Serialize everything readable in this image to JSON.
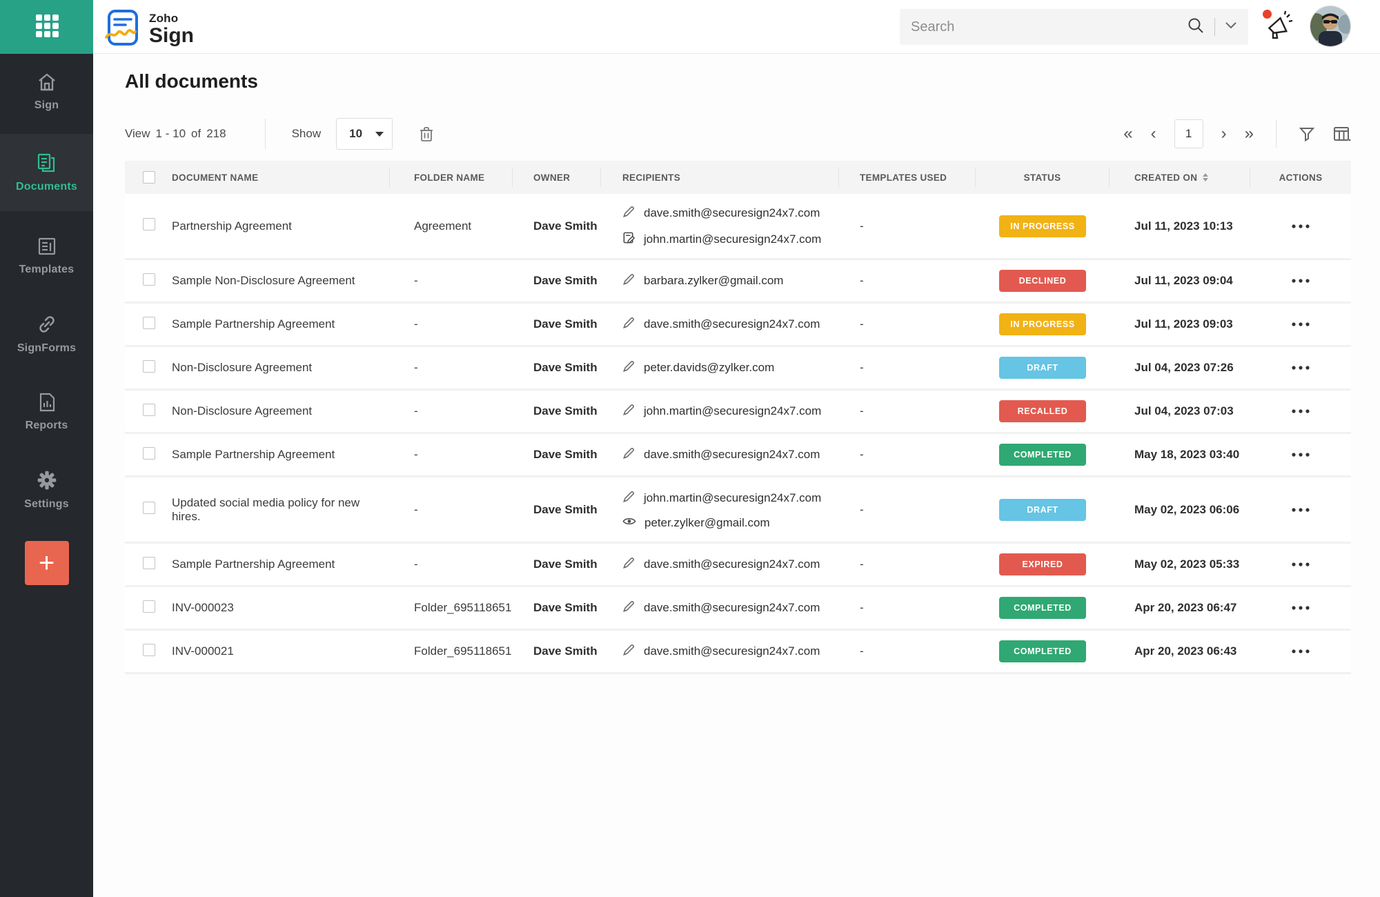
{
  "topbar": {
    "search_placeholder": "Search",
    "brand": {
      "name_top": "Zoho",
      "name_bottom": "Sign"
    }
  },
  "sidebar": {
    "items": [
      {
        "label": "Sign",
        "icon": "home-icon",
        "active": false
      },
      {
        "label": "Documents",
        "icon": "documents-icon",
        "active": true
      },
      {
        "label": "Templates",
        "icon": "templates-icon",
        "active": false
      },
      {
        "label": "SignForms",
        "icon": "link-icon",
        "active": false
      },
      {
        "label": "Reports",
        "icon": "reports-icon",
        "active": false
      },
      {
        "label": "Settings",
        "icon": "gear-icon",
        "active": false
      }
    ],
    "add_label": "+"
  },
  "page": {
    "title": "All documents"
  },
  "toolbar": {
    "view_label": "View",
    "range": "1 - 10",
    "of_label": "of",
    "total": "218",
    "show_label": "Show",
    "page_size": "10"
  },
  "pagination": {
    "first": "«",
    "prev": "‹",
    "current_page": "1",
    "next": "›",
    "last": "»"
  },
  "status_colors": {
    "IN PROGRESS": "#F1B215",
    "DECLINED": "#E25A4F",
    "DRAFT": "#66C4E4",
    "RECALLED": "#E25A4F",
    "COMPLETED": "#30A873",
    "EXPIRED": "#E25A4F"
  },
  "table": {
    "columns": [
      "DOCUMENT NAME",
      "FOLDER NAME",
      "OWNER",
      "RECIPIENTS",
      "TEMPLATES USED",
      "STATUS",
      "CREATED ON",
      "ACTIONS"
    ],
    "rows": [
      {
        "name": "Partnership Agreement",
        "folder": "Agreement",
        "owner": "Dave Smith",
        "recipients": [
          {
            "icon": "signer-pen-icon",
            "email": "dave.smith@securesign24x7.com"
          },
          {
            "icon": "in-person-sign-icon",
            "email": "john.martin@securesign24x7.com"
          }
        ],
        "templates_used": "-",
        "status": "IN PROGRESS",
        "created_on": "Jul 11, 2023 10:13"
      },
      {
        "name": "Sample Non-Disclosure Agreement",
        "folder": "-",
        "owner": "Dave Smith",
        "recipients": [
          {
            "icon": "signer-pen-icon",
            "email": "barbara.zylker@gmail.com"
          }
        ],
        "templates_used": "-",
        "status": "DECLINED",
        "created_on": "Jul 11, 2023 09:04"
      },
      {
        "name": "Sample Partnership Agreement",
        "folder": "-",
        "owner": "Dave Smith",
        "recipients": [
          {
            "icon": "signer-pen-icon",
            "email": "dave.smith@securesign24x7.com"
          }
        ],
        "templates_used": "-",
        "status": "IN PROGRESS",
        "created_on": "Jul 11, 2023 09:03"
      },
      {
        "name": "Non-Disclosure Agreement",
        "folder": "-",
        "owner": "Dave Smith",
        "recipients": [
          {
            "icon": "signer-pen-icon",
            "email": "peter.davids@zylker.com"
          }
        ],
        "templates_used": "-",
        "status": "DRAFT",
        "created_on": "Jul 04, 2023 07:26"
      },
      {
        "name": "Non-Disclosure Agreement",
        "folder": "-",
        "owner": "Dave Smith",
        "recipients": [
          {
            "icon": "signer-pen-icon",
            "email": "john.martin@securesign24x7.com"
          }
        ],
        "templates_used": "-",
        "status": "RECALLED",
        "created_on": "Jul 04, 2023 07:03"
      },
      {
        "name": "Sample Partnership Agreement",
        "folder": "-",
        "owner": "Dave Smith",
        "recipients": [
          {
            "icon": "signer-pen-icon",
            "email": "dave.smith@securesign24x7.com"
          }
        ],
        "templates_used": "-",
        "status": "COMPLETED",
        "created_on": "May 18, 2023 03:40"
      },
      {
        "name": "Updated social media policy for new hires.",
        "folder": "-",
        "owner": "Dave Smith",
        "recipients": [
          {
            "icon": "signer-pen-icon",
            "email": "john.martin@securesign24x7.com"
          },
          {
            "icon": "viewer-eye-icon",
            "email": "peter.zylker@gmail.com"
          }
        ],
        "templates_used": "-",
        "status": "DRAFT",
        "created_on": "May 02, 2023 06:06"
      },
      {
        "name": "Sample Partnership Agreement",
        "folder": "-",
        "owner": "Dave Smith",
        "recipients": [
          {
            "icon": "signer-pen-icon",
            "email": "dave.smith@securesign24x7.com"
          }
        ],
        "templates_used": "-",
        "status": "EXPIRED",
        "created_on": "May 02, 2023 05:33"
      },
      {
        "name": "INV-000023",
        "folder": "Folder_695118651",
        "owner": "Dave Smith",
        "recipients": [
          {
            "icon": "signer-pen-icon",
            "email": "dave.smith@securesign24x7.com"
          }
        ],
        "templates_used": "-",
        "status": "COMPLETED",
        "created_on": "Apr 20, 2023 06:47"
      },
      {
        "name": "INV-000021",
        "folder": "Folder_695118651",
        "owner": "Dave Smith",
        "recipients": [
          {
            "icon": "signer-pen-icon",
            "email": "dave.smith@securesign24x7.com"
          }
        ],
        "templates_used": "-",
        "status": "COMPLETED",
        "created_on": "Apr 20, 2023 06:43"
      }
    ]
  }
}
